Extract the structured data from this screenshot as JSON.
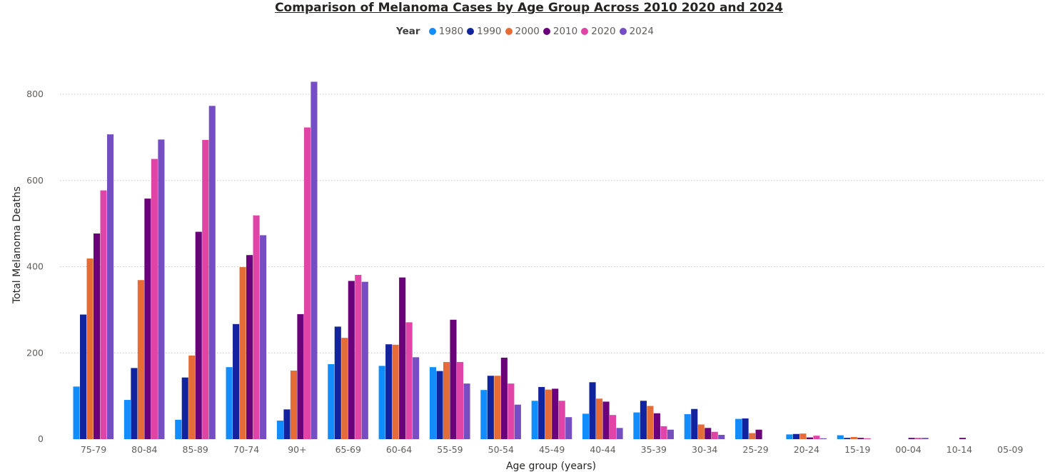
{
  "chart_data": {
    "type": "bar",
    "title": "Comparison of Melanoma Cases by Age Group Across 2010 2020 and 2024",
    "legend_title": "Year",
    "legend_position": "top-center",
    "xlabel": "Age group (years)",
    "ylabel": "Total Melanoma Deaths",
    "ylim": [
      0,
      860
    ],
    "yticks": [
      0,
      200,
      400,
      600,
      800
    ],
    "grid": true,
    "categories": [
      "75-79",
      "80-84",
      "85-89",
      "70-74",
      "90+",
      "65-69",
      "60-64",
      "55-59",
      "50-54",
      "45-49",
      "40-44",
      "35-39",
      "30-34",
      "25-29",
      "20-24",
      "15-19",
      "00-04",
      "10-14",
      "05-09"
    ],
    "series": [
      {
        "name": "1980",
        "color": "#118dff",
        "values": [
          122,
          91,
          45,
          167,
          43,
          174,
          170,
          167,
          114,
          89,
          59,
          62,
          58,
          47,
          11,
          9,
          0,
          0,
          0
        ]
      },
      {
        "name": "1990",
        "color": "#12239e",
        "values": [
          289,
          165,
          143,
          267,
          69,
          261,
          220,
          158,
          147,
          121,
          132,
          89,
          70,
          48,
          12,
          3,
          0,
          0,
          0
        ]
      },
      {
        "name": "2000",
        "color": "#e66c37",
        "values": [
          419,
          369,
          194,
          399,
          159,
          235,
          219,
          179,
          147,
          115,
          94,
          77,
          34,
          14,
          13,
          5,
          0,
          0,
          0
        ]
      },
      {
        "name": "2010",
        "color": "#6b007b",
        "values": [
          477,
          558,
          481,
          427,
          290,
          367,
          375,
          277,
          189,
          117,
          87,
          60,
          26,
          22,
          4,
          3,
          3,
          3,
          0
        ]
      },
      {
        "name": "2020",
        "color": "#e044a7",
        "values": [
          577,
          650,
          694,
          519,
          723,
          381,
          271,
          179,
          129,
          89,
          56,
          30,
          17,
          0,
          8,
          2,
          3,
          0,
          0
        ]
      },
      {
        "name": "2024",
        "color": "#744ec2",
        "values": [
          707,
          695,
          773,
          473,
          829,
          365,
          190,
          129,
          80,
          51,
          26,
          22,
          10,
          0,
          2,
          0,
          3,
          0,
          0
        ]
      }
    ]
  }
}
